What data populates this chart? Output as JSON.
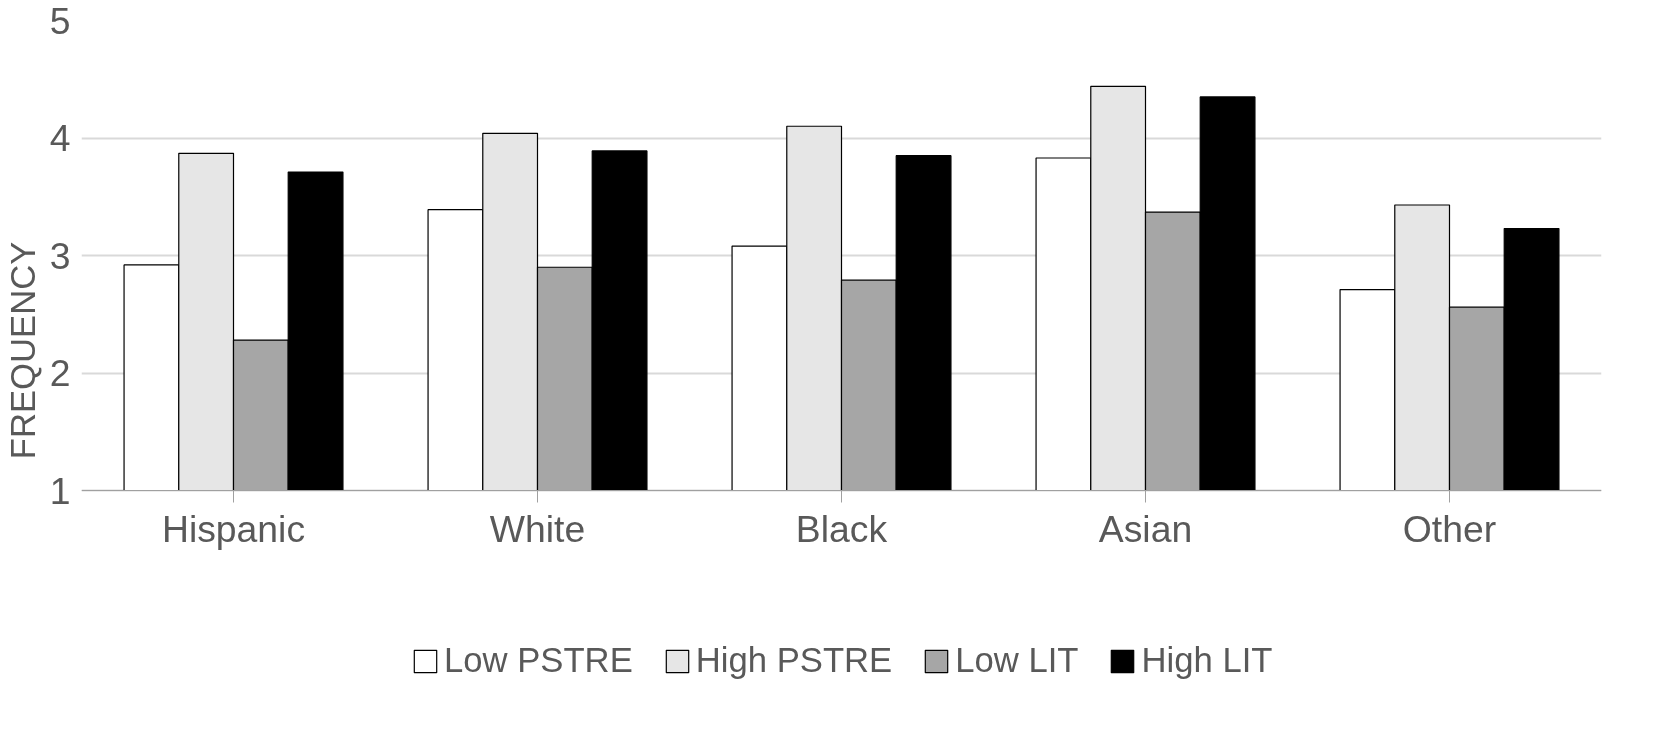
{
  "chart_data": {
    "type": "bar",
    "ylabel": "FREQUENCY",
    "categories": [
      "Hispanic",
      "White",
      "Black",
      "Asian",
      "Other"
    ],
    "series": [
      {
        "name": "Low PSTRE",
        "color": "#ffffff",
        "values": [
          2.92,
          3.39,
          3.08,
          3.83,
          2.71
        ]
      },
      {
        "name": "High PSTRE",
        "color": "#e6e6e6",
        "values": [
          3.87,
          4.04,
          4.1,
          4.44,
          3.43
        ]
      },
      {
        "name": "Low LIT",
        "color": "#a6a6a6",
        "values": [
          2.28,
          2.9,
          2.79,
          3.37,
          2.56
        ]
      },
      {
        "name": "High LIT",
        "color": "#000000",
        "values": [
          3.71,
          3.89,
          3.85,
          4.35,
          3.23
        ]
      }
    ],
    "ylim": [
      1,
      5
    ],
    "yticks": [
      1,
      2,
      3,
      4,
      5
    ],
    "grid": "y",
    "legend": "bottom"
  }
}
